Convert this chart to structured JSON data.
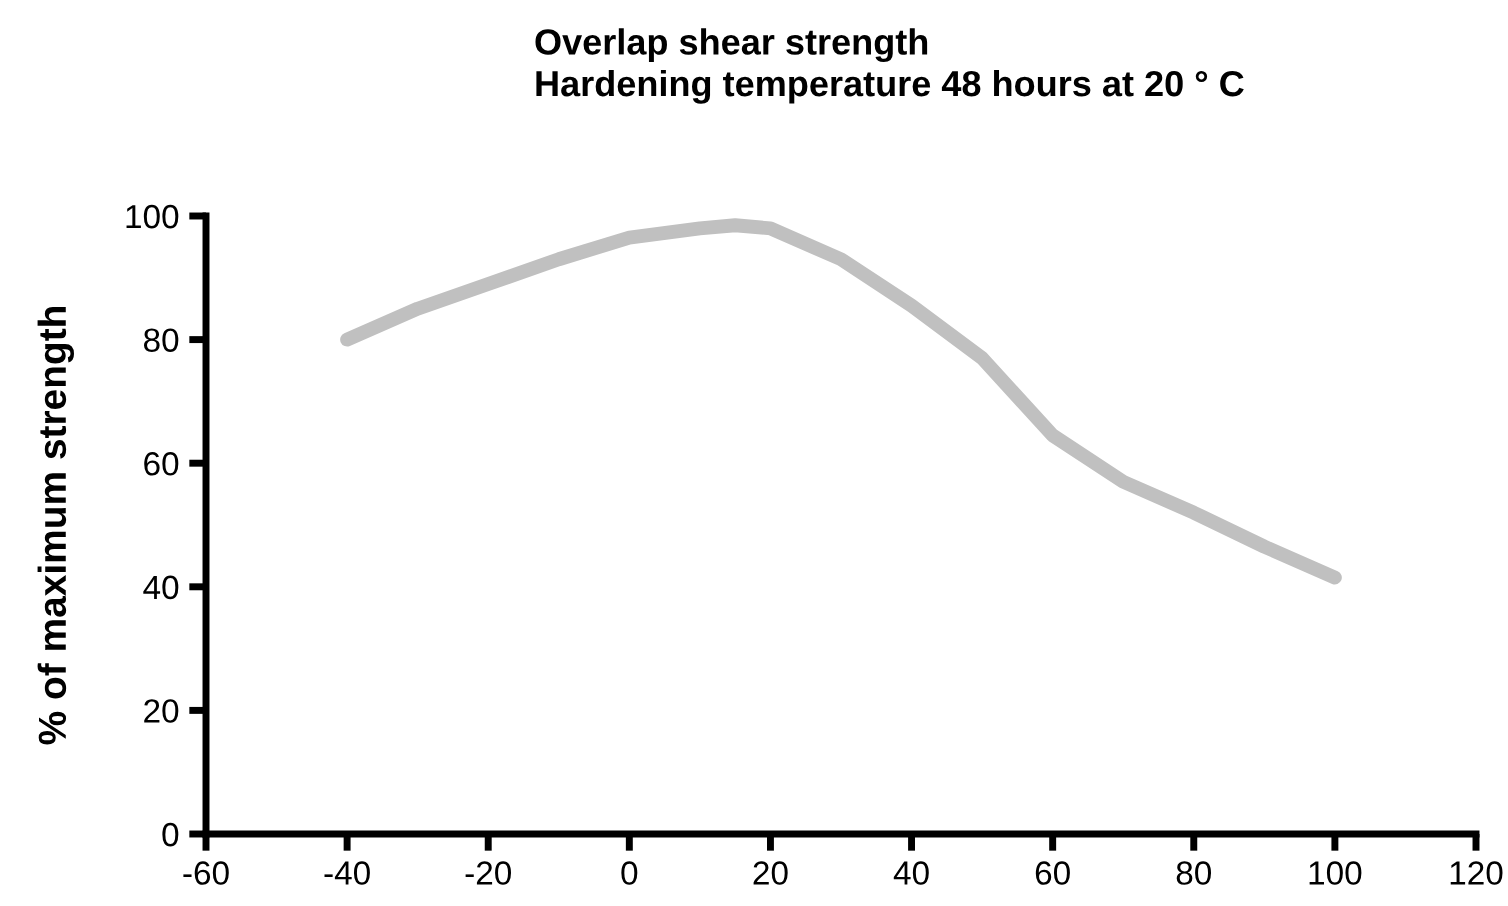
{
  "chart_data": {
    "type": "line",
    "title": "Overlap shear strength\nHardening temperature 48 hours at 20 ° C",
    "ylabel": "% of maximum strength",
    "x": [
      -40,
      -30,
      -20,
      -10,
      0,
      10,
      15,
      20,
      30,
      40,
      50,
      60,
      70,
      80,
      90,
      100
    ],
    "series": [
      {
        "color": "#c0c0c0",
        "values": [
          80,
          85,
          89,
          93,
          96.5,
          98,
          98.5,
          98,
          93,
          85.5,
          77,
          64.5,
          57,
          52,
          46.5,
          41.5
        ]
      }
    ],
    "xlim": [
      -60,
      120
    ],
    "xticks": [
      -60,
      -40,
      -20,
      0,
      20,
      40,
      60,
      80,
      100,
      120
    ],
    "ylim": [
      0,
      100
    ],
    "yticks": [
      0,
      20,
      40,
      60,
      80,
      100
    ],
    "grid": false,
    "legend": false,
    "marker": "none",
    "line_style": "solid"
  }
}
